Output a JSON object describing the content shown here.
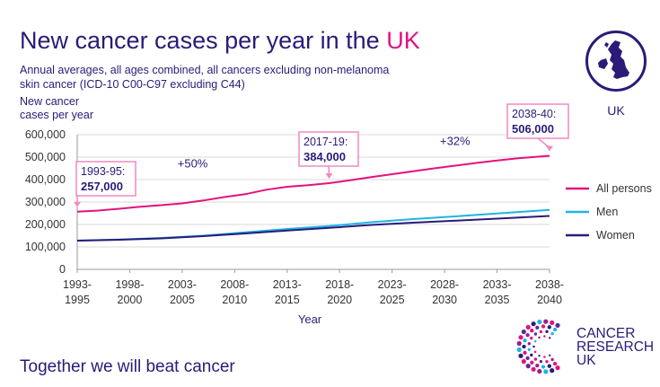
{
  "header": {
    "title_main": "New cancer cases per year in the ",
    "title_highlight": "UK",
    "subtitle": "Annual averages, all ages combined, all cancers excluding non-melanoma skin cancer (ICD-10 C00-C97 excluding C44)"
  },
  "badge": {
    "icon": "uk-map-icon",
    "label": "UK"
  },
  "footer": {
    "tagline": "Together we will beat cancer"
  },
  "brand": {
    "lines": [
      "CANCER",
      "RESEARCH",
      "UK"
    ],
    "icon": "cruk-dot-logo-icon"
  },
  "colors": {
    "navy": "#2b1a78",
    "magenta": "#e3127e",
    "cyan": "#1eb4e6",
    "grid": "#d9d9d9",
    "callout_border": "#f08ac1"
  },
  "chart_data": {
    "type": "line",
    "ylabel": "New cancer\ncases per year",
    "xlabel": "Year",
    "ylim": [
      0,
      600000
    ],
    "yticks": [
      {
        "value": 0,
        "label": "0"
      },
      {
        "value": 100000,
        "label": "100,000"
      },
      {
        "value": 200000,
        "label": "200,000"
      },
      {
        "value": 300000,
        "label": "300,000"
      },
      {
        "value": 400000,
        "label": "400,000"
      },
      {
        "value": 500000,
        "label": "500,000"
      },
      {
        "value": 600000,
        "label": "600,000"
      }
    ],
    "xlim": [
      1994,
      2039
    ],
    "xticks": [
      {
        "value": 1994,
        "lines": [
          "1993-",
          "1995"
        ]
      },
      {
        "value": 1999,
        "lines": [
          "1998-",
          "2000"
        ]
      },
      {
        "value": 2004,
        "lines": [
          "2003-",
          "2005"
        ]
      },
      {
        "value": 2009,
        "lines": [
          "2008-",
          "2010"
        ]
      },
      {
        "value": 2014,
        "lines": [
          "2013-",
          "2015"
        ]
      },
      {
        "value": 2019,
        "lines": [
          "2018-",
          "2020"
        ]
      },
      {
        "value": 2024,
        "lines": [
          "2023-",
          "2025"
        ]
      },
      {
        "value": 2029,
        "lines": [
          "2028-",
          "2030"
        ]
      },
      {
        "value": 2034,
        "lines": [
          "2033-",
          "2035"
        ]
      },
      {
        "value": 2039,
        "lines": [
          "2038-",
          "2040"
        ]
      }
    ],
    "grid": true,
    "legend_position": "right",
    "series": [
      {
        "name": "All persons",
        "color": "#e3127e",
        "x": [
          1994,
          1996,
          1998,
          2000,
          2002,
          2004,
          2006,
          2008,
          2010,
          2012,
          2014,
          2016,
          2018,
          2020,
          2022,
          2024,
          2026,
          2028,
          2030,
          2032,
          2034,
          2036,
          2039
        ],
        "y": [
          257000,
          262000,
          270000,
          279000,
          286000,
          294000,
          307000,
          322000,
          335000,
          355000,
          368000,
          375000,
          384000,
          397000,
          411000,
          424000,
          437000,
          450000,
          462000,
          474000,
          485000,
          495000,
          506000
        ]
      },
      {
        "name": "Men",
        "color": "#1eb4e6",
        "x": [
          1994,
          1998,
          2002,
          2006,
          2010,
          2014,
          2018,
          2022,
          2026,
          2030,
          2034,
          2039
        ],
        "y": [
          128000,
          133000,
          140000,
          150000,
          165000,
          180000,
          193000,
          210000,
          224000,
          236000,
          249000,
          265000
        ]
      },
      {
        "name": "Women",
        "color": "#2b1a78",
        "x": [
          1994,
          1998,
          2002,
          2006,
          2010,
          2014,
          2018,
          2022,
          2026,
          2030,
          2034,
          2039
        ],
        "y": [
          128000,
          132000,
          138000,
          148000,
          160000,
          173000,
          185000,
          198000,
          208000,
          217000,
          226000,
          238000
        ]
      }
    ],
    "annotations": {
      "callouts": [
        {
          "period": "1993-95:",
          "value": "257,000",
          "x": 1994,
          "y": 257000
        },
        {
          "period": "2017-19:",
          "value": "384,000",
          "x": 2018,
          "y": 384000
        },
        {
          "period": "2038-40:",
          "value": "506,000",
          "x": 2039,
          "y": 506000
        }
      ],
      "changes": [
        {
          "text": "+50%",
          "x": 2005,
          "y": 470000
        },
        {
          "text": "+32%",
          "x": 2030,
          "y": 570000
        }
      ]
    }
  }
}
